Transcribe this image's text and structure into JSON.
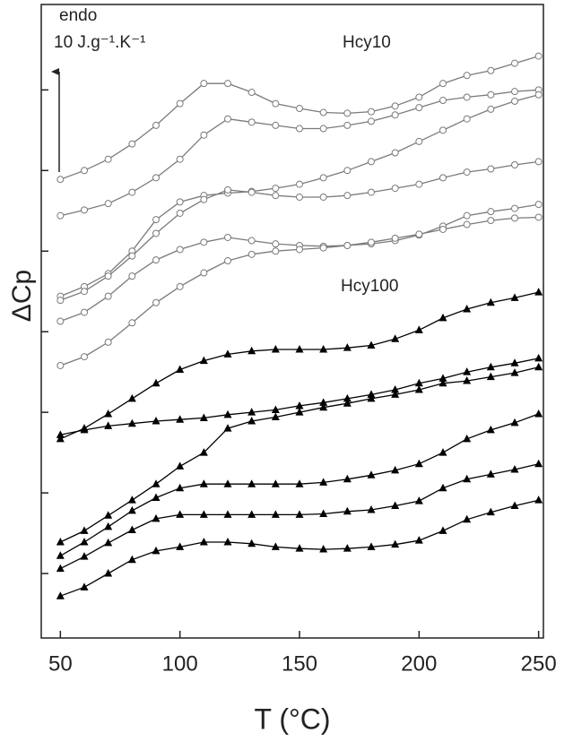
{
  "chart_data": {
    "type": "line",
    "x_label": "T (°C)",
    "y_label": "ΔCp",
    "annotations": [
      "endo",
      "10 J.g⁻¹.K⁻¹",
      "Hcy10",
      "Hcy100"
    ],
    "xlim": [
      42,
      252
    ],
    "ylim": [
      0,
      78.6
    ],
    "xticks": [
      50,
      100,
      150,
      200,
      250
    ],
    "yticks": [
      8,
      18,
      28,
      38,
      48,
      58,
      68
    ],
    "x": [
      50,
      60,
      70,
      80,
      90,
      100,
      110,
      120,
      130,
      140,
      150,
      160,
      170,
      180,
      190,
      200,
      210,
      220,
      230,
      240,
      250
    ],
    "series": [
      {
        "color": "#7a7a7a",
        "marker": "circle",
        "values": [
          56.9,
          58.0,
          59.4,
          61.3,
          63.6,
          66.3,
          68.8,
          68.8,
          67.7,
          66.3,
          65.7,
          65.2,
          65.1,
          65.3,
          66.0,
          67.1,
          68.8,
          69.8,
          70.4,
          71.3,
          72.2
        ]
      },
      {
        "color": "#7a7a7a",
        "marker": "circle",
        "values": [
          52.4,
          53.1,
          53.9,
          55.3,
          57.1,
          59.4,
          62.4,
          64.4,
          64.0,
          63.6,
          63.2,
          63.2,
          63.6,
          64.1,
          64.9,
          65.8,
          66.7,
          67.1,
          67.4,
          67.8,
          68.0
        ]
      },
      {
        "color": "#7a7a7a",
        "marker": "circle",
        "values": [
          42.4,
          43.6,
          45.2,
          48.0,
          51.9,
          54.1,
          54.9,
          55.2,
          55.4,
          55.8,
          56.3,
          57.1,
          58.0,
          59.1,
          60.2,
          61.6,
          63.0,
          64.4,
          65.6,
          66.6,
          67.4
        ]
      },
      {
        "color": "#7a7a7a",
        "marker": "circle",
        "values": [
          41.9,
          43.0,
          44.9,
          47.4,
          50.2,
          52.7,
          54.4,
          55.6,
          55.3,
          54.9,
          54.7,
          54.7,
          54.9,
          55.3,
          55.8,
          56.3,
          57.1,
          57.8,
          58.2,
          58.7,
          59.1
        ]
      },
      {
        "color": "#7a7a7a",
        "marker": "circle",
        "values": [
          39.3,
          40.4,
          42.4,
          44.9,
          46.9,
          48.2,
          49.1,
          49.7,
          49.3,
          48.9,
          48.7,
          48.6,
          48.7,
          48.9,
          49.3,
          50.0,
          51.1,
          52.4,
          52.9,
          53.3,
          53.8
        ]
      },
      {
        "color": "#7a7a7a",
        "marker": "circle",
        "values": [
          33.8,
          34.9,
          36.7,
          39.1,
          41.6,
          43.6,
          45.3,
          46.8,
          47.6,
          48.0,
          48.2,
          48.4,
          48.7,
          49.1,
          49.6,
          50.1,
          50.7,
          51.3,
          51.8,
          52.1,
          52.2
        ]
      },
      {
        "color": "#000000",
        "marker": "triangle",
        "values": [
          24.7,
          26.0,
          27.8,
          29.7,
          31.6,
          33.3,
          34.4,
          35.2,
          35.6,
          35.8,
          35.8,
          35.8,
          36.0,
          36.3,
          37.1,
          38.2,
          39.7,
          40.8,
          41.6,
          42.2,
          42.9
        ]
      },
      {
        "color": "#000000",
        "marker": "triangle",
        "values": [
          25.2,
          25.8,
          26.3,
          26.6,
          26.9,
          27.1,
          27.3,
          27.7,
          28.0,
          28.3,
          28.8,
          29.2,
          29.7,
          30.2,
          30.8,
          31.6,
          32.2,
          33.0,
          33.6,
          34.1,
          34.7
        ]
      },
      {
        "color": "#000000",
        "marker": "triangle",
        "values": [
          11.9,
          13.3,
          15.2,
          17.1,
          19.1,
          21.3,
          23.0,
          26.0,
          26.9,
          27.4,
          28.0,
          28.6,
          29.1,
          29.7,
          30.2,
          30.8,
          31.6,
          31.9,
          32.4,
          32.9,
          33.6
        ]
      },
      {
        "color": "#000000",
        "marker": "triangle",
        "values": [
          10.2,
          11.9,
          13.8,
          15.8,
          17.4,
          18.6,
          19.1,
          19.1,
          19.1,
          19.1,
          19.1,
          19.3,
          19.7,
          20.2,
          20.8,
          21.6,
          23.0,
          24.7,
          25.8,
          26.7,
          27.8
        ]
      },
      {
        "color": "#000000",
        "marker": "triangle",
        "values": [
          8.6,
          10.1,
          11.8,
          13.4,
          14.8,
          15.3,
          15.3,
          15.3,
          15.3,
          15.3,
          15.3,
          15.4,
          15.7,
          15.9,
          16.4,
          17.0,
          18.6,
          19.7,
          20.3,
          20.9,
          21.6
        ]
      },
      {
        "color": "#000000",
        "marker": "triangle",
        "values": [
          5.2,
          6.3,
          8.0,
          9.7,
          10.8,
          11.3,
          11.9,
          11.9,
          11.7,
          11.3,
          11.1,
          11.0,
          11.1,
          11.3,
          11.6,
          12.1,
          13.3,
          14.7,
          15.6,
          16.4,
          17.1
        ]
      }
    ]
  }
}
